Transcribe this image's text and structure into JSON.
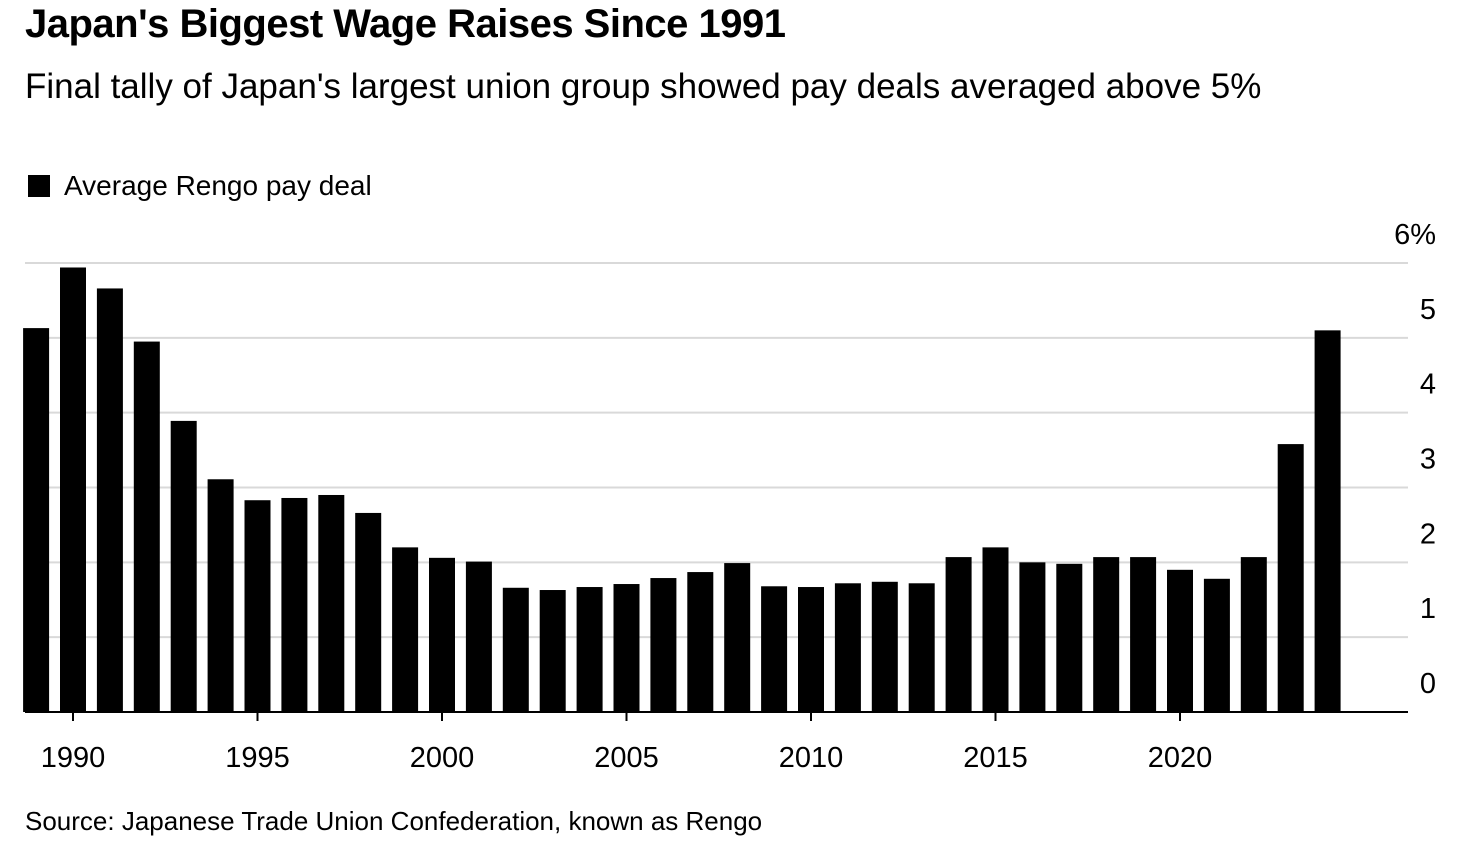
{
  "chart_data": {
    "type": "bar",
    "title": "Japan's Biggest Wage Raises Since 1991",
    "subtitle": "Final tally of Japan's largest union group showed pay deals averaged above 5%",
    "legend": [
      {
        "label": "Average Rengo pay deal",
        "color": "#000000"
      }
    ],
    "legend_placement": "top-left",
    "source": "Source: Japanese Trade Union Confederation, known as Rengo",
    "xlabel": "",
    "ylabel": "",
    "categories": [
      1989,
      1990,
      1991,
      1992,
      1993,
      1994,
      1995,
      1996,
      1997,
      1998,
      1999,
      2000,
      2001,
      2002,
      2003,
      2004,
      2005,
      2006,
      2007,
      2008,
      2009,
      2010,
      2011,
      2012,
      2013,
      2014,
      2015,
      2016,
      2017,
      2018,
      2019,
      2020,
      2021,
      2022,
      2023,
      2024
    ],
    "values": [
      5.13,
      5.94,
      5.66,
      4.95,
      3.89,
      3.11,
      2.83,
      2.86,
      2.9,
      2.66,
      2.2,
      2.06,
      2.01,
      1.66,
      1.63,
      1.67,
      1.71,
      1.79,
      1.87,
      1.99,
      1.68,
      1.67,
      1.72,
      1.74,
      1.72,
      2.07,
      2.2,
      2.0,
      1.98,
      2.07,
      2.07,
      1.9,
      1.78,
      2.07,
      3.58,
      5.1
    ],
    "x_tick_labels": [
      "1990",
      "1995",
      "2000",
      "2005",
      "2010",
      "2015",
      "2020"
    ],
    "y_tick_labels": [
      "0",
      "1",
      "2",
      "3",
      "4",
      "5",
      "6%"
    ],
    "ylim": [
      0,
      6
    ],
    "grid": true,
    "y_axis_side": "right"
  }
}
